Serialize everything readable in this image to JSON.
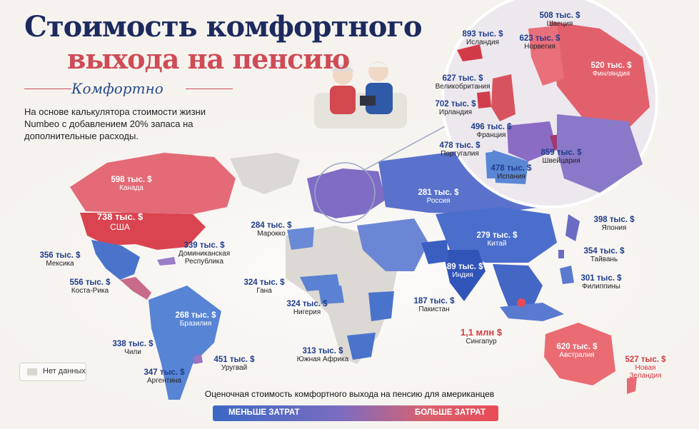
{
  "header": {
    "title_line1": "Стоимость комфортного",
    "title_line2": "выхода на пенсию",
    "subtitle": "Комфортно",
    "description": "На основе калькулятора стоимости жизни Numbeo с добавлением 20% запаса на дополнительные расходы."
  },
  "colors": {
    "low": "#3a68c4",
    "mid": "#8a6cc0",
    "high": "#e84a55",
    "no_data": "#d9d6d2"
  },
  "countries": [
    {
      "name": "Канада",
      "value": "598 тыс. $"
    },
    {
      "name": "США",
      "value": "738 тыс. $"
    },
    {
      "name": "Мексика",
      "value": "356 тыс. $"
    },
    {
      "name": "Доминиканская Республика",
      "value": "339 тыс. $"
    },
    {
      "name": "Коста-Рика",
      "value": "556 тыс. $"
    },
    {
      "name": "Бразилия",
      "value": "268 тыс. $"
    },
    {
      "name": "Чили",
      "value": "338 тыс. $"
    },
    {
      "name": "Аргентина",
      "value": "347 тыс. $"
    },
    {
      "name": "Уругвай",
      "value": "451 тыс. $"
    },
    {
      "name": "Марокко",
      "value": "284 тыс. $"
    },
    {
      "name": "Гана",
      "value": "324 тыс. $"
    },
    {
      "name": "Нигерия",
      "value": "324 тыс. $"
    },
    {
      "name": "Южная Африка",
      "value": "313 тыс. $"
    },
    {
      "name": "Россия",
      "value": "281 тыс. $"
    },
    {
      "name": "Китай",
      "value": "279 тыс. $"
    },
    {
      "name": "Индия",
      "value": "189 тыс. $"
    },
    {
      "name": "Пакистан",
      "value": "187 тыс. $"
    },
    {
      "name": "Сингапур",
      "value": "1,1 млн $"
    },
    {
      "name": "Япония",
      "value": "398 тыс. $"
    },
    {
      "name": "Тайвань",
      "value": "354 тыс. $"
    },
    {
      "name": "Филиппины",
      "value": "301 тыс. $"
    },
    {
      "name": "Австралия",
      "value": "620 тыс. $"
    },
    {
      "name": "Новая Зеландия",
      "value": "527 тыс. $"
    }
  ],
  "europe_inset": [
    {
      "name": "Швеция",
      "value": "508 тыс. $"
    },
    {
      "name": "Исландия",
      "value": "893 тыс. $"
    },
    {
      "name": "Норвегия",
      "value": "623 тыс. $"
    },
    {
      "name": "Финляндия",
      "value": "520 тыс. $"
    },
    {
      "name": "Великобритания",
      "value": "627 тыс. $"
    },
    {
      "name": "Ирландия",
      "value": "702 тыс. $"
    },
    {
      "name": "Франция",
      "value": "496 тыс. $"
    },
    {
      "name": "Португалия",
      "value": "478 тыс. $"
    },
    {
      "name": "Испания",
      "value": "478 тыс. $"
    },
    {
      "name": "Швейцария",
      "value": "859 тыс. $"
    }
  ],
  "legend": {
    "title": "Оценочная стоимость комфортного выхода на пенсию для американцев",
    "low_label": "МЕНЬШЕ ЗАТРАТ",
    "high_label": "БОЛЬШЕ ЗАТРАТ",
    "no_data_label": "Нет данных"
  }
}
